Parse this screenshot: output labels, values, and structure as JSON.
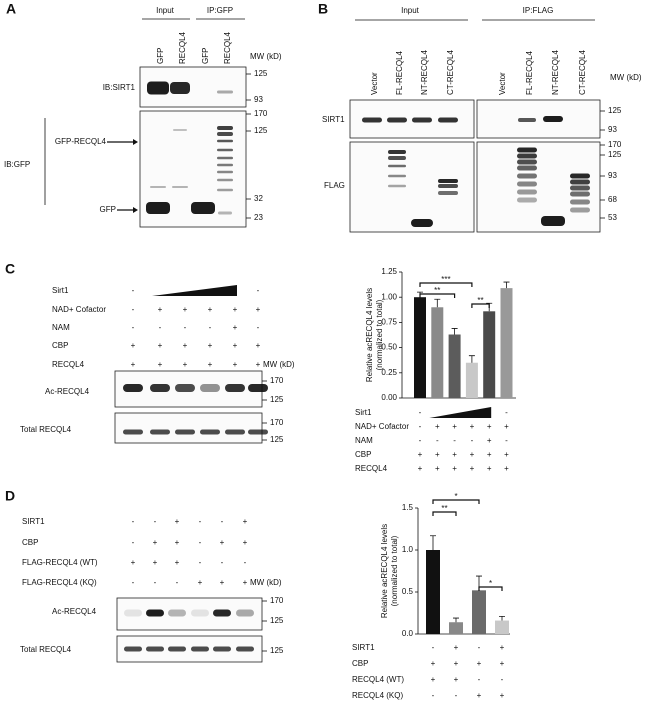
{
  "panel_a": {
    "label": "A",
    "groups": [
      "Input",
      "IP:GFP"
    ],
    "lanes": [
      "GFP",
      "RECQL4",
      "GFP",
      "RECQL4"
    ],
    "mw_title": "MW (kD)",
    "rows": [
      "IB:SIRT1",
      "IB:GFP"
    ],
    "mw_top": [
      125,
      93
    ],
    "mw_bottom": [
      170,
      125,
      32,
      23
    ],
    "arrows": [
      "GFP-RECQL4",
      "GFP"
    ]
  },
  "panel_b": {
    "label": "B",
    "groups": [
      "Input",
      "IP:FLAG"
    ],
    "lanes": [
      "Vector",
      "FL-RECQL4",
      "NT-RECQL4",
      "CT-RECQL4",
      "Vector",
      "FL-RECQL4",
      "NT-RECQL4",
      "CT-RECQL4"
    ],
    "mw_title": "MW (kD)",
    "rows": [
      "SIRT1",
      "FLAG"
    ],
    "mw_top": [
      125,
      93
    ],
    "mw_bottom": [
      170,
      125,
      93,
      68,
      53
    ]
  },
  "panel_c": {
    "label": "C",
    "treatments": [
      {
        "name": "Sirt1",
        "signs": [
          "-",
          null,
          null,
          null,
          null,
          "-"
        ]
      },
      {
        "name": "NAD+ Cofactor",
        "signs": [
          "-",
          "+",
          "+",
          "+",
          "+",
          "+"
        ]
      },
      {
        "name": "NAM",
        "signs": [
          "-",
          "-",
          "-",
          "-",
          "+",
          "-"
        ]
      },
      {
        "name": "CBP",
        "signs": [
          "+",
          "+",
          "+",
          "+",
          "+",
          "+"
        ]
      },
      {
        "name": "RECQL4",
        "signs": [
          "+",
          "+",
          "+",
          "+",
          "+",
          "+"
        ]
      }
    ],
    "mw_title": "MW (kD)",
    "blots": [
      "Ac-RECQL4",
      "Total RECQL4"
    ],
    "mw": [
      [
        170,
        125
      ],
      [
        170,
        125
      ]
    ]
  },
  "panel_d": {
    "label": "D",
    "treatments": [
      {
        "name": "SIRT1",
        "signs": [
          "-",
          "-",
          "+",
          "-",
          "-",
          "+"
        ]
      },
      {
        "name": "CBP",
        "signs": [
          "-",
          "+",
          "+",
          "-",
          "+",
          "+"
        ]
      },
      {
        "name": "FLAG-RECQL4 (WT)",
        "signs": [
          "+",
          "+",
          "+",
          "-",
          "-",
          "-"
        ]
      },
      {
        "name": "FLAG-RECQL4 (KQ)",
        "signs": [
          "-",
          "-",
          "-",
          "+",
          "+",
          "+"
        ]
      }
    ],
    "mw_title": "MW (kD)",
    "blots": [
      "Ac-RECQL4",
      "Total RECQL4"
    ],
    "mw": [
      [
        170,
        125
      ],
      [
        125
      ]
    ]
  },
  "chart_data": [
    {
      "type": "bar",
      "ylabel": [
        "Relative acRECQL4 levels",
        "(normalized to total)"
      ],
      "values": [
        1.0,
        0.9,
        0.63,
        0.35,
        0.86,
        1.09
      ],
      "errors": [
        0.05,
        0.08,
        0.06,
        0.07,
        0.08,
        0.06
      ],
      "colors": [
        "#111111",
        "#8a8a8a",
        "#5c5c5c",
        "#c8c8c8",
        "#4a4a4a",
        "#999999"
      ],
      "ylim": [
        0,
        1.25
      ],
      "yticks": [
        {
          "value": 0,
          "label": "0.00"
        },
        {
          "value": 0.25,
          "label": "0.25"
        },
        {
          "value": 0.5,
          "label": "0.50"
        },
        {
          "value": 0.75,
          "label": "0.75"
        },
        {
          "value": 1,
          "label": "1.00"
        },
        {
          "value": 1.25,
          "label": "1.25"
        }
      ],
      "significance": [
        {
          "bars": [
            0,
            3
          ],
          "label": "***"
        },
        {
          "bars": [
            0,
            2
          ],
          "label": "**"
        },
        {
          "bars": [
            3,
            4
          ],
          "label": "**"
        }
      ],
      "conditions": [
        {
          "name": "Sirt1",
          "signs": [
            "-",
            null,
            null,
            null,
            null,
            "-"
          ]
        },
        {
          "name": "NAD+ Cofactor",
          "signs": [
            "-",
            "+",
            "+",
            "+",
            "+",
            "+"
          ]
        },
        {
          "name": "NAM",
          "signs": [
            "-",
            "-",
            "-",
            "-",
            "+",
            "-"
          ]
        },
        {
          "name": "CBP",
          "signs": [
            "+",
            "+",
            "+",
            "+",
            "+",
            "+"
          ]
        },
        {
          "name": "RECQL4",
          "signs": [
            "+",
            "+",
            "+",
            "+",
            "+",
            "+"
          ]
        }
      ]
    },
    {
      "type": "bar",
      "ylabel": [
        "Relative acRECQL4 levels",
        "(normalized to total)"
      ],
      "values": [
        1.0,
        0.14,
        0.52,
        0.16
      ],
      "errors": [
        0.17,
        0.05,
        0.17,
        0.05
      ],
      "colors": [
        "#111111",
        "#888888",
        "#6a6a6a",
        "#c8c8c8"
      ],
      "ylim": [
        0,
        1.5
      ],
      "yticks": [
        {
          "value": 0,
          "label": "0.0"
        },
        0.5,
        {
          "value": 1,
          "label": "1.0"
        },
        1.5
      ],
      "significance": [
        {
          "bars": [
            0,
            2
          ],
          "label": "*"
        },
        {
          "bars": [
            0,
            1
          ],
          "label": "**"
        },
        {
          "bars": [
            2,
            3
          ],
          "label": "*"
        }
      ],
      "conditions": [
        {
          "name": "SIRT1",
          "signs": [
            "-",
            "+",
            "-",
            "+"
          ]
        },
        {
          "name": "CBP",
          "signs": [
            "+",
            "+",
            "+",
            "+"
          ]
        },
        {
          "name": "RECQL4  (WT)",
          "signs": [
            "+",
            "+",
            "-",
            "-"
          ]
        },
        {
          "name": "RECQL4  (KQ)",
          "signs": [
            "-",
            "-",
            "+",
            "+"
          ]
        }
      ]
    }
  ]
}
